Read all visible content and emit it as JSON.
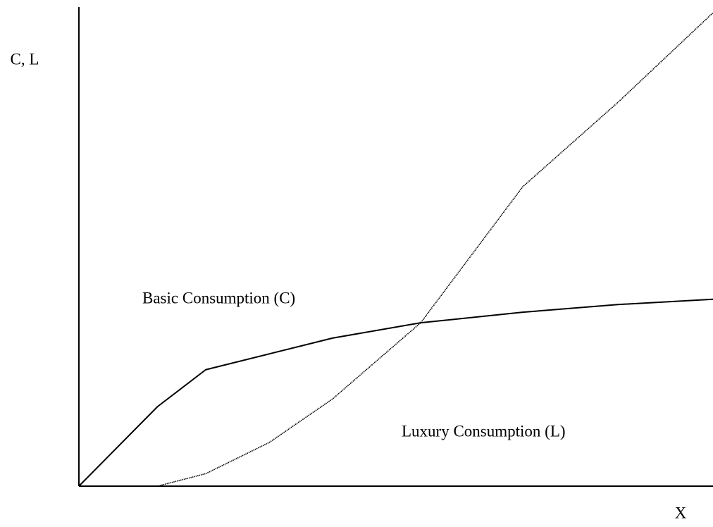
{
  "chart_data": {
    "type": "line",
    "ylabel": "C, L",
    "xlabel": "X",
    "x": [
      0,
      12.4,
      20,
      30,
      40,
      53.9,
      70,
      85,
      100
    ],
    "series": [
      {
        "name": "Basic Consumption (C)",
        "color": "#000000",
        "style": "solid",
        "values": [
          0,
          16.6,
          24.3,
          27.6,
          30.9,
          34.1,
          36.3,
          37.9,
          39
        ]
      },
      {
        "name": "Luxury Consumption (L)",
        "color": "#000000",
        "style": "dotted",
        "values": [
          0,
          0,
          2.6,
          9.1,
          18.2,
          34.1,
          62.5,
          80.1,
          98.8
        ]
      }
    ],
    "xlim": [
      0,
      100
    ],
    "ylim": [
      0,
      100
    ]
  }
}
